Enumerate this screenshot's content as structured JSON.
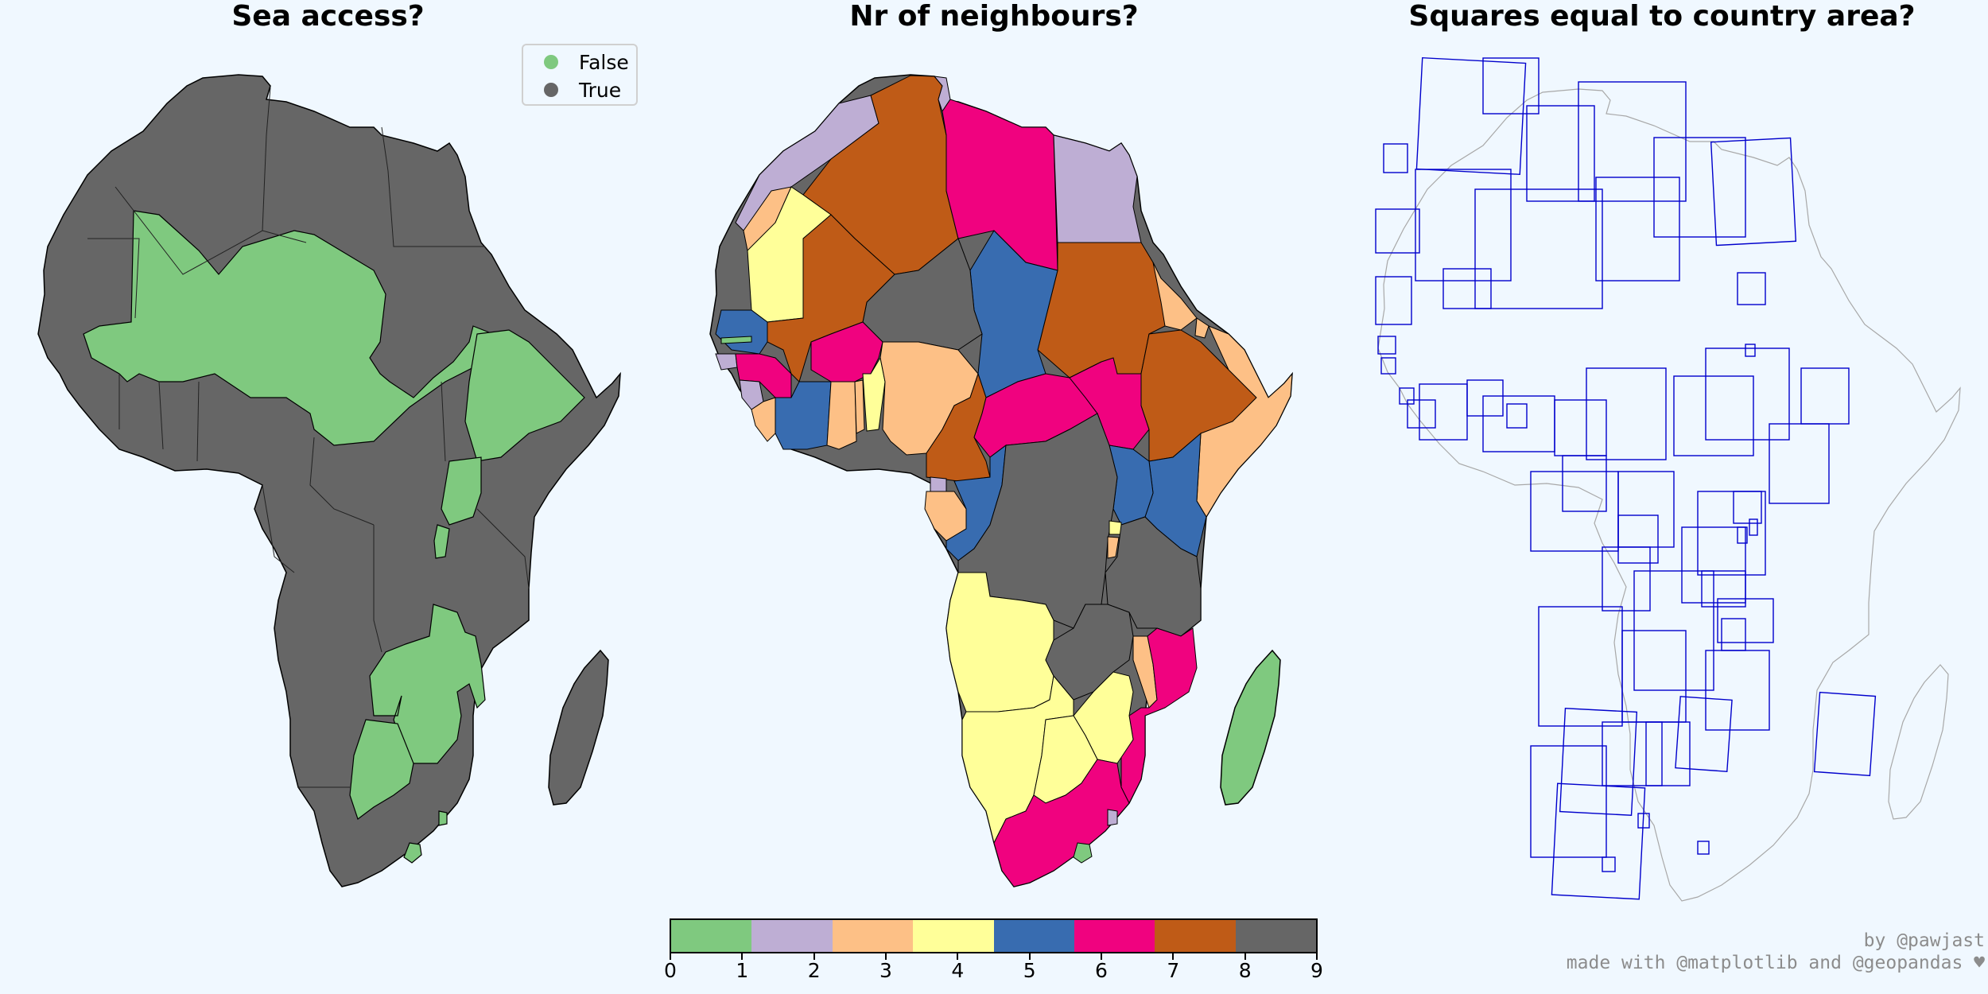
{
  "titles": {
    "sea_access": "Sea access?",
    "neighbours": "Nr of neighbours?",
    "squares": "Squares equal to country area?"
  },
  "colors": {
    "false": "#7fc97f",
    "true": "#666666",
    "background": "#f0f8ff",
    "squares": "#0000cc",
    "outline": "#9a9a9a"
  },
  "legend": {
    "items": [
      {
        "label": "False",
        "color": "#7fc97f"
      },
      {
        "label": "True",
        "color": "#666666"
      }
    ]
  },
  "colorbar": {
    "palette": [
      "#7fc97f",
      "#beaed4",
      "#fdc086",
      "#ffff99",
      "#386cb0",
      "#f0027f",
      "#bf5b17",
      "#666666"
    ],
    "ticks": [
      "0",
      "1",
      "2",
      "3",
      "4",
      "5",
      "6",
      "7",
      "8",
      "9"
    ],
    "min": 0,
    "max": 9
  },
  "credits": {
    "line1": "by @pawjast",
    "line2": "made with @matplotlib and @geopandas ♥"
  }
}
